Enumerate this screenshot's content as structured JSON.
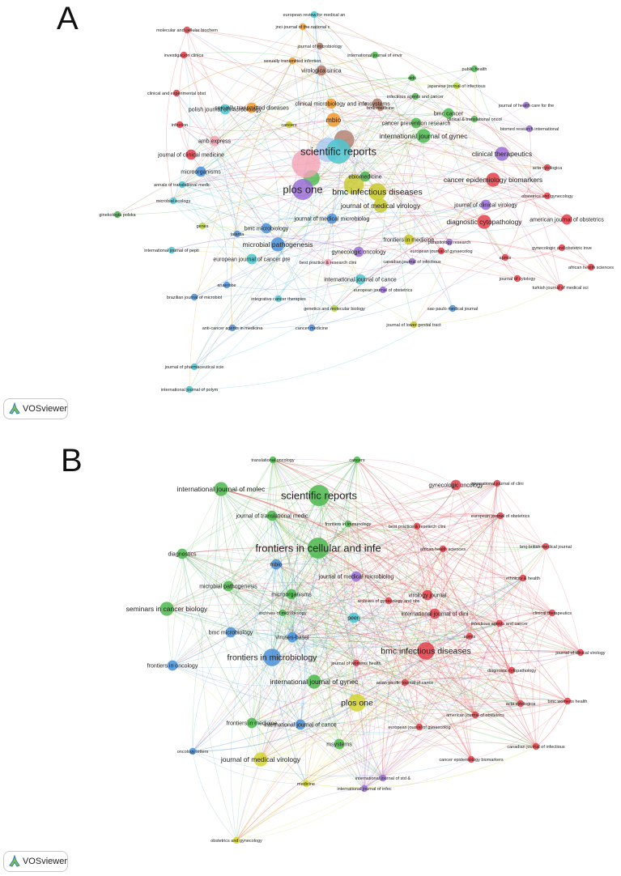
{
  "panels": [
    {
      "letter": "A",
      "palette": {
        "red": "#e3404a",
        "green": "#4cb84c",
        "blue": "#4a90d9",
        "yellow": "#c9c92a",
        "purple": "#9b6fd6",
        "cyan": "#4cc7cf",
        "orange": "#f29a2e",
        "brown": "#b07b6a",
        "pink": "#f4a3b6",
        "lightblue": "#a9c7ee",
        "lime": "#b8d63a",
        "teal": "#2fa3a3"
      },
      "nodes": [
        {
          "label": "european review for medical an",
          "c": "cyan",
          "s": 1
        },
        {
          "label": "jnci-journal of the national c",
          "c": "orange",
          "s": 1
        },
        {
          "label": "molecular and cellular biochem",
          "c": "red",
          "s": 1
        },
        {
          "label": "journal of microbiology",
          "c": "brown",
          "s": 1
        },
        {
          "label": "investigacion clinica",
          "c": "red",
          "s": 1
        },
        {
          "label": "international journal of envir",
          "c": "green",
          "s": 1
        },
        {
          "label": "sexually transmitted infection",
          "c": "orange",
          "s": 1
        },
        {
          "label": "virologica sinica",
          "c": "brown",
          "s": 2
        },
        {
          "label": "public health",
          "c": "green",
          "s": 1
        },
        {
          "label": "aids",
          "c": "green",
          "s": 1
        },
        {
          "label": "japanese journal of infectious",
          "c": "lime",
          "s": 1
        },
        {
          "label": "clinical and experimental obst",
          "c": "red",
          "s": 1
        },
        {
          "label": "sexually transmitted diseases",
          "c": "orange",
          "s": 2
        },
        {
          "label": "bmc medicine",
          "c": "brown",
          "s": 1
        },
        {
          "label": "infectious agents and cancer",
          "c": "green",
          "s": 1
        },
        {
          "label": "journal of health care for the",
          "c": "purple",
          "s": 1
        },
        {
          "label": "polish journal of microbiology",
          "c": "cyan",
          "s": 2
        },
        {
          "label": "clinical microbiology and infe",
          "c": "orange",
          "s": 2
        },
        {
          "label": "msystems",
          "c": "brown",
          "s": 2
        },
        {
          "label": "bmc cancer",
          "c": "green",
          "s": 2
        },
        {
          "label": "clinical & translational oncol",
          "c": "green",
          "s": 1
        },
        {
          "label": "infection",
          "c": "red",
          "s": 1
        },
        {
          "label": "cancers",
          "c": "yellow",
          "s": 1
        },
        {
          "label": "mbio",
          "c": "orange",
          "s": 3
        },
        {
          "label": "cancer prevention research",
          "c": "green",
          "s": 2
        },
        {
          "label": "biomed research international",
          "c": "purple",
          "s": 1
        },
        {
          "label": "amb express",
          "c": "pink",
          "s": 2
        },
        {
          "label": "international journal of gynec",
          "c": "green",
          "s": 3
        },
        {
          "label": "journal of clinical medicine",
          "c": "red",
          "s": 2
        },
        {
          "label": "scientific reports",
          "c": "cyan",
          "s": 6
        },
        {
          "label": "clinical therapeutics",
          "c": "purple",
          "s": 3
        },
        {
          "label": "acta cytologica",
          "c": "red",
          "s": 1
        },
        {
          "label": "microorganisms",
          "c": "blue",
          "s": 2
        },
        {
          "label": "ebiomedicine",
          "c": "green",
          "s": 2
        },
        {
          "label": "cancer epidemiology biomarkers",
          "c": "red",
          "s": 3
        },
        {
          "label": "annals of translational medic",
          "c": "cyan",
          "s": 1
        },
        {
          "label": "obstetrics and gynecology",
          "c": "red",
          "s": 1
        },
        {
          "label": "plos one",
          "c": "purple",
          "s": 5
        },
        {
          "label": "bmc infectious diseases",
          "c": "yellow",
          "s": 4
        },
        {
          "label": "microbial ecology",
          "c": "cyan",
          "s": 1
        },
        {
          "label": "journal of clinical virology",
          "c": "purple",
          "s": 2
        },
        {
          "label": "ginekologia polska",
          "c": "green",
          "s": 1
        },
        {
          "label": "journal of medical virology",
          "c": "yellow",
          "s": 3
        },
        {
          "label": "american journal of obstetrics",
          "c": "red",
          "s": 2
        },
        {
          "label": "genes",
          "c": "lime",
          "s": 1
        },
        {
          "label": "journal of medical microbiolog",
          "c": "blue",
          "s": 2
        },
        {
          "label": "diagnostic cytopathology",
          "c": "red",
          "s": 3
        },
        {
          "label": "talanta",
          "c": "blue",
          "s": 1
        },
        {
          "label": "bmc microbiology",
          "c": "blue",
          "s": 2
        },
        {
          "label": "frontiers in medicine",
          "c": "yellow",
          "s": 2
        },
        {
          "label": "parasitology research",
          "c": "purple",
          "s": 1
        },
        {
          "label": "gynecologic and obstetric inve",
          "c": "red",
          "s": 1
        },
        {
          "label": "microbial pathogenesis",
          "c": "blue",
          "s": 3
        },
        {
          "label": "european journal of gynaecolog",
          "c": "red",
          "s": 1
        },
        {
          "label": "african health sciences",
          "c": "red",
          "s": 1
        },
        {
          "label": "international journal of pepti",
          "c": "cyan",
          "s": 1
        },
        {
          "label": "gynecologic oncology",
          "c": "purple",
          "s": 2
        },
        {
          "label": "apmis",
          "c": "red",
          "s": 1
        },
        {
          "label": "european journal of cancer pre",
          "c": "cyan",
          "s": 2
        },
        {
          "label": "best practice & research clini",
          "c": "pink",
          "s": 1
        },
        {
          "label": "canadian journal of infectious",
          "c": "purple",
          "s": 1
        },
        {
          "label": "journal of cytology",
          "c": "red",
          "s": 1
        },
        {
          "label": "international journal of cance",
          "c": "cyan",
          "s": 2
        },
        {
          "label": "turkish journal of medical sci",
          "c": "red",
          "s": 1
        },
        {
          "label": "anaerobe",
          "c": "blue",
          "s": 1
        },
        {
          "label": "european journal of obstetrics",
          "c": "purple",
          "s": 1
        },
        {
          "label": "brazilian journal of microbiol",
          "c": "blue",
          "s": 1
        },
        {
          "label": "integrative cancer therapies",
          "c": "cyan",
          "s": 1
        },
        {
          "label": "sao paulo medical journal",
          "c": "blue",
          "s": 1
        },
        {
          "label": "genetics and molecular biology",
          "c": "lime",
          "s": 1
        },
        {
          "label": "anti-cancer agents in medicina",
          "c": "blue",
          "s": 1
        },
        {
          "label": "cancer medicine",
          "c": "blue",
          "s": 1
        },
        {
          "label": "journal of lower genital tract",
          "c": "yellow",
          "s": 1
        },
        {
          "label": "journal of pharmaceutical scie",
          "c": "cyan",
          "s": 1
        },
        {
          "label": "international journal of polym",
          "c": "cyan",
          "s": 1
        }
      ],
      "hub_nodes": [
        {
          "c": "pink",
          "s": 6
        },
        {
          "c": "lightblue",
          "s": 5
        },
        {
          "c": "brown",
          "s": 4
        },
        {
          "c": "yellow",
          "s": 4
        },
        {
          "c": "green",
          "s": 3
        }
      ]
    },
    {
      "letter": "B",
      "palette": {
        "red": "#e3404a",
        "green": "#4cb84c",
        "blue": "#4a90d9",
        "yellow": "#d6d633",
        "purple": "#9b6fd6",
        "cyan": "#4cc7cf"
      },
      "nodes": [
        {
          "label": "translational oncology",
          "c": "green",
          "s": 1
        },
        {
          "label": "cancers",
          "c": "green",
          "s": 1
        },
        {
          "label": "gynecologic oncology",
          "c": "red",
          "s": 2
        },
        {
          "label": "international journal of clini",
          "c": "red",
          "s": 1
        },
        {
          "label": "international journal of molec",
          "c": "green",
          "s": 3
        },
        {
          "label": "scientific reports",
          "c": "green",
          "s": 5
        },
        {
          "label": "european journal of obstetrics",
          "c": "red",
          "s": 1
        },
        {
          "label": "journal of translational medic",
          "c": "green",
          "s": 2
        },
        {
          "label": "frontiers in immunology",
          "c": "green",
          "s": 1
        },
        {
          "label": "best practice & research clini",
          "c": "red",
          "s": 1
        },
        {
          "label": "african health sciences",
          "c": "red",
          "s": 1
        },
        {
          "label": "bmj-british medical journal",
          "c": "red",
          "s": 1
        },
        {
          "label": "diagnostics",
          "c": "green",
          "s": 2
        },
        {
          "label": "frontiers in cellular and infe",
          "c": "green",
          "s": 5
        },
        {
          "label": "mbio",
          "c": "blue",
          "s": 2
        },
        {
          "label": "ethnicity & health",
          "c": "red",
          "s": 1
        },
        {
          "label": "journal of medical microbiolog",
          "c": "purple",
          "s": 2
        },
        {
          "label": "virology journal",
          "c": "red",
          "s": 2
        },
        {
          "label": "microbial pathogenesis",
          "c": "green",
          "s": 2
        },
        {
          "label": "microorganisms",
          "c": "green",
          "s": 2
        },
        {
          "label": "archives of gynecology and obs",
          "c": "red",
          "s": 1
        },
        {
          "label": "seminars in cancer biology",
          "c": "green",
          "s": 3
        },
        {
          "label": "archives of microbiology",
          "c": "green",
          "s": 1
        },
        {
          "label": "international journal of clini",
          "c": "red",
          "s": 2
        },
        {
          "label": "clinical therapeutics",
          "c": "red",
          "s": 1
        },
        {
          "label": "peerj",
          "c": "cyan",
          "s": 2
        },
        {
          "label": "viruses-basel",
          "c": "blue",
          "s": 2
        },
        {
          "label": "infectious agents and cancer",
          "c": "red",
          "s": 1
        },
        {
          "label": "bmc microbiology",
          "c": "blue",
          "s": 2
        },
        {
          "label": "apmis",
          "c": "red",
          "s": 1
        },
        {
          "label": "bmc infectious diseases",
          "c": "red",
          "s": 4
        },
        {
          "label": "journal of clinical virology",
          "c": "red",
          "s": 1
        },
        {
          "label": "frontiers in microbiology",
          "c": "blue",
          "s": 4
        },
        {
          "label": "frontiers in oncology",
          "c": "blue",
          "s": 2
        },
        {
          "label": "journal of womens health",
          "c": "red",
          "s": 1
        },
        {
          "label": "diagnostic cytopathology",
          "c": "red",
          "s": 1
        },
        {
          "label": "international journal of gynec",
          "c": "green",
          "s": 3
        },
        {
          "label": "asian pacific journal of cance",
          "c": "red",
          "s": 1
        },
        {
          "label": "bmc womens health",
          "c": "red",
          "s": 1
        },
        {
          "label": "acta cytologica",
          "c": "red",
          "s": 1
        },
        {
          "label": "plos one",
          "c": "yellow",
          "s": 4
        },
        {
          "label": "frontiers in medicine",
          "c": "green",
          "s": 2
        },
        {
          "label": "american journal of obstetrics",
          "c": "red",
          "s": 1
        },
        {
          "label": "international journal of cance",
          "c": "blue",
          "s": 2
        },
        {
          "label": "european journal of gynaecolog",
          "c": "red",
          "s": 1
        },
        {
          "label": "oncology letters",
          "c": "blue",
          "s": 1
        },
        {
          "label": "msystems",
          "c": "green",
          "s": 2
        },
        {
          "label": "canadian journal of infectious",
          "c": "red",
          "s": 1
        },
        {
          "label": "cancer epidemiology biomarkers",
          "c": "red",
          "s": 1
        },
        {
          "label": "journal of medical virology",
          "c": "yellow",
          "s": 3
        },
        {
          "label": "international journal of std &",
          "c": "purple",
          "s": 1
        },
        {
          "label": "medicine",
          "c": "yellow",
          "s": 1
        },
        {
          "label": "international journal of infec",
          "c": "purple",
          "s": 1
        },
        {
          "label": "obstetrics and gynecology",
          "c": "yellow",
          "s": 1
        }
      ]
    }
  ],
  "badge": {
    "text": "VOSviewer"
  }
}
